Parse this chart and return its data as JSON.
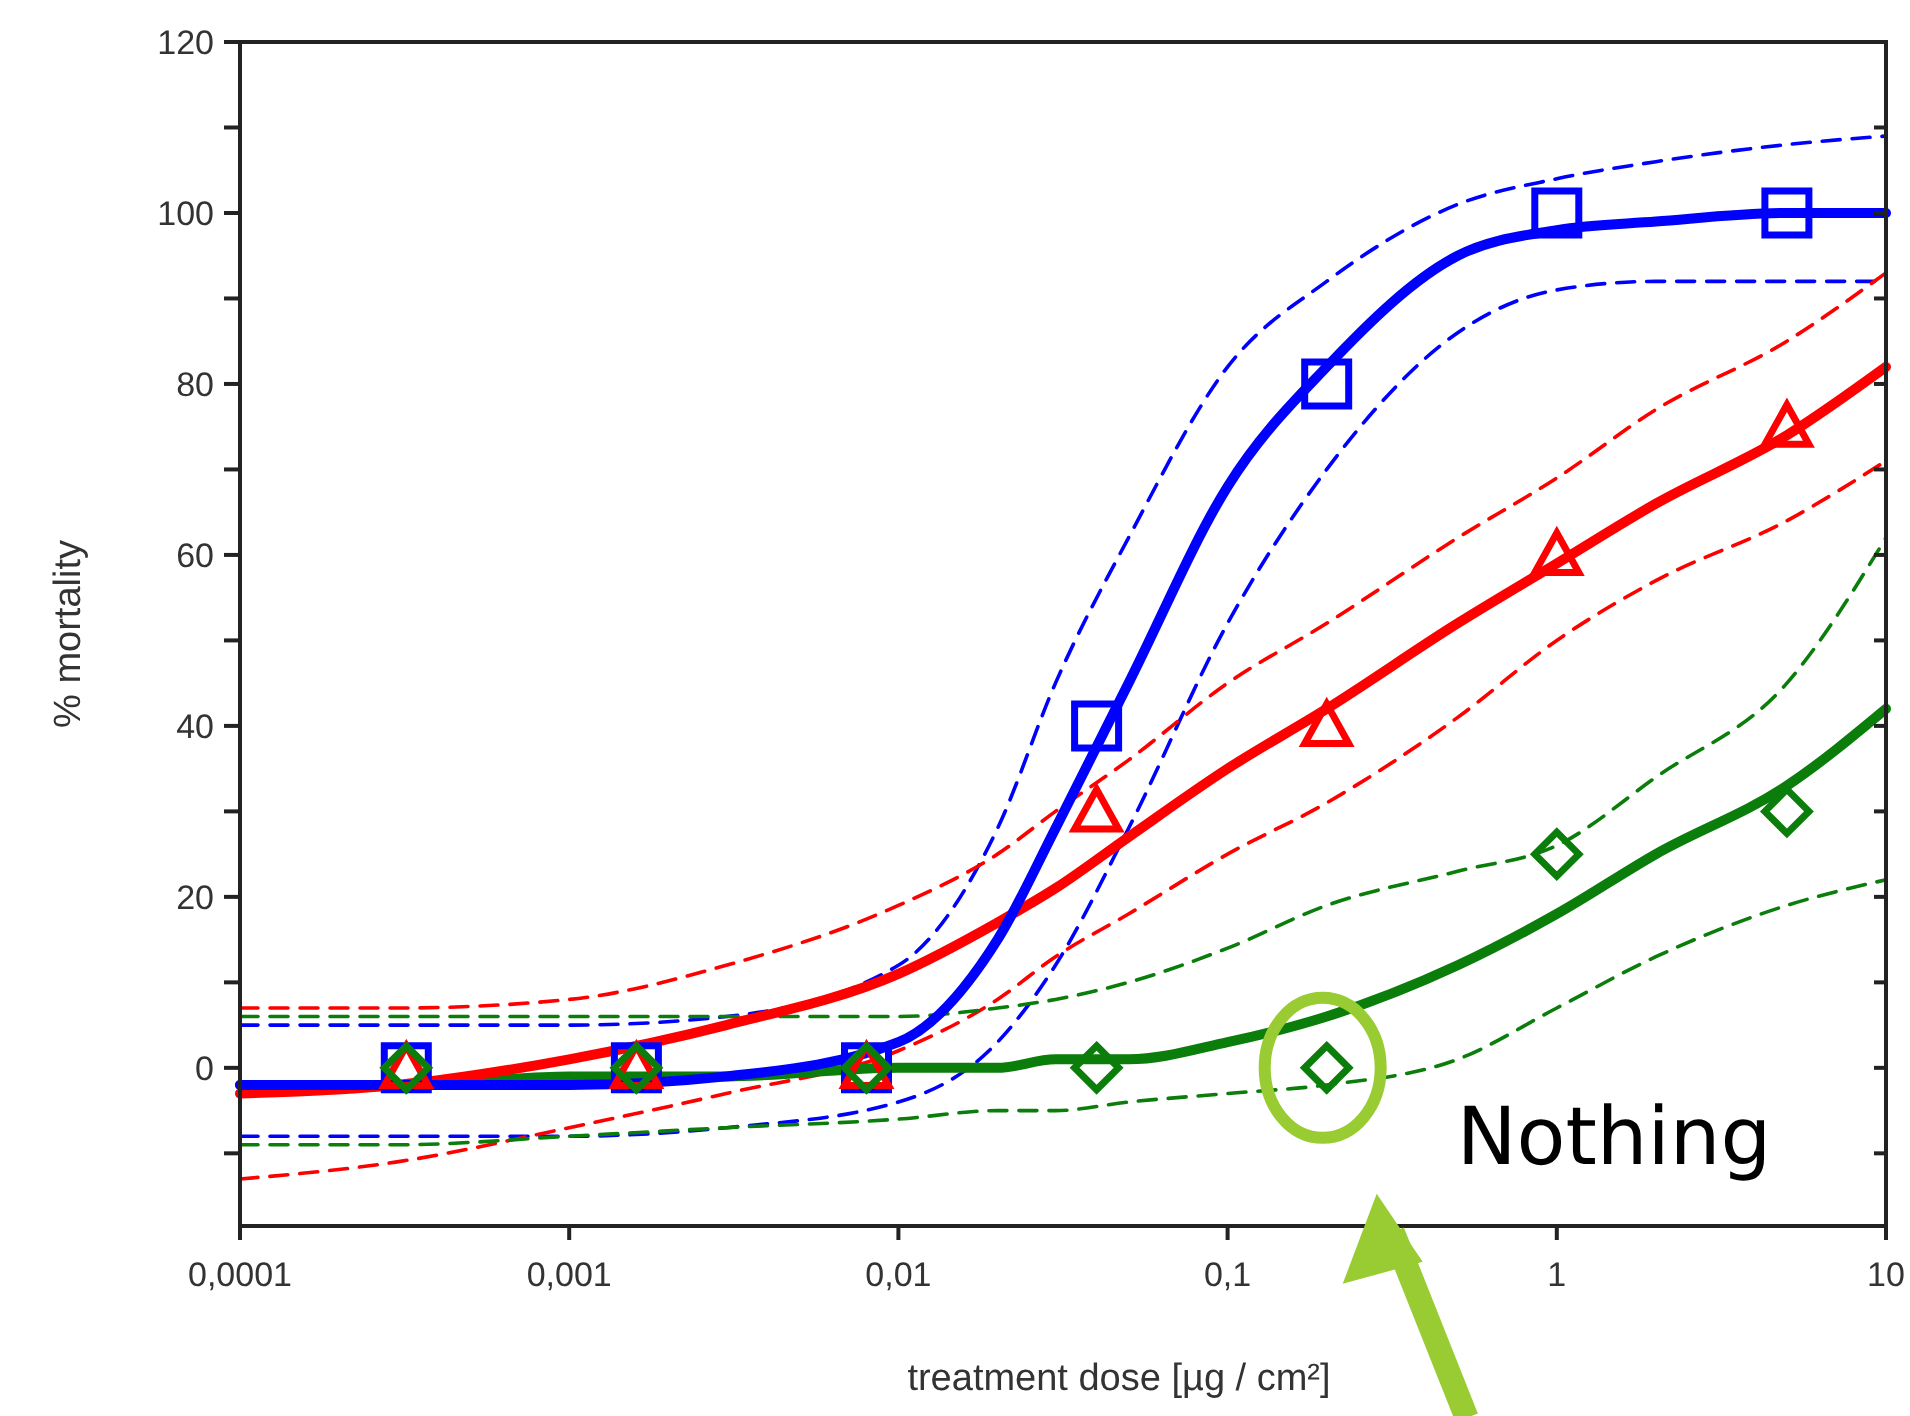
{
  "chart_data": {
    "type": "scatter",
    "xlabel": "treatment dose [µg / cm²]",
    "ylabel": "% mortality",
    "log": "x",
    "grid": false,
    "xlim": [
      0.0001,
      10
    ],
    "xticks": [
      {
        "value": 0.0001,
        "label": "0,0001"
      },
      {
        "value": 0.001,
        "label": "0,001"
      },
      {
        "value": 0.01,
        "label": "0,01"
      },
      {
        "value": 0.1,
        "label": "0,1"
      },
      {
        "value": 1,
        "label": "1"
      },
      10
    ],
    "ylim": [
      -18.5,
      120
    ],
    "yticks": [
      {
        "value": -10,
        "label": null
      },
      0,
      {
        "value": 10,
        "label": null
      },
      20,
      {
        "value": 30,
        "label": null
      },
      40,
      {
        "value": 50,
        "label": null
      },
      60,
      {
        "value": 70,
        "label": null
      },
      80,
      {
        "value": 90,
        "label": null
      },
      100,
      {
        "value": 110,
        "label": null
      },
      120
    ],
    "x": [
      0.00032,
      0.0016,
      0.008,
      0.04,
      0.2,
      1,
      5
    ],
    "series": [
      {
        "type": "line",
        "color": "#0000ff",
        "line_style": "dashed",
        "x": [
          0.0001,
          0.0003,
          0.001,
          0.003,
          0.01,
          0.02,
          0.03,
          0.05,
          0.1,
          0.2,
          0.5,
          1,
          2,
          5,
          10
        ],
        "values": [
          5,
          5,
          5,
          6,
          12,
          28,
          45,
          62,
          82,
          92,
          101,
          104,
          106,
          108,
          109
        ]
      },
      {
        "type": "line",
        "color": "#0000ff",
        "line_style": "dashed",
        "x": [
          0.0001,
          0.0003,
          0.001,
          0.003,
          0.01,
          0.02,
          0.03,
          0.05,
          0.1,
          0.2,
          0.5,
          1,
          2,
          5,
          10
        ],
        "values": [
          -8,
          -8,
          -8,
          -7,
          -4,
          3,
          12,
          28,
          52,
          70,
          86,
          91,
          92,
          92,
          92
        ]
      },
      {
        "type": "line",
        "color": "#ff0000",
        "line_style": "dashed",
        "x": [
          0.0001,
          0.0003,
          0.001,
          0.003,
          0.01,
          0.02,
          0.03,
          0.05,
          0.1,
          0.2,
          0.5,
          1,
          2,
          5,
          10
        ],
        "values": [
          7,
          7,
          8,
          12,
          19,
          25,
          30,
          36,
          45,
          52,
          62,
          69,
          77,
          85,
          93
        ]
      },
      {
        "type": "line",
        "color": "#ff0000",
        "line_style": "dashed",
        "x": [
          0.0001,
          0.0003,
          0.001,
          0.003,
          0.01,
          0.02,
          0.03,
          0.05,
          0.1,
          0.2,
          0.5,
          1,
          2,
          5,
          10
        ],
        "values": [
          -13,
          -11,
          -7,
          -3,
          2,
          8,
          13,
          18,
          25,
          31,
          41,
          50,
          57,
          64,
          71
        ]
      },
      {
        "type": "line",
        "color": "#0a7d0a",
        "line_style": "dashed",
        "x": [
          0.0001,
          0.0003,
          0.001,
          0.003,
          0.01,
          0.02,
          0.03,
          0.05,
          0.1,
          0.2,
          0.5,
          1,
          2,
          5,
          10
        ],
        "values": [
          6,
          6,
          6,
          6,
          6,
          7,
          8,
          10,
          14,
          19,
          23,
          26,
          34,
          45,
          62
        ]
      },
      {
        "type": "line",
        "color": "#0a7d0a",
        "line_style": "dashed",
        "x": [
          0.0001,
          0.0003,
          0.001,
          0.003,
          0.01,
          0.02,
          0.03,
          0.05,
          0.1,
          0.2,
          0.5,
          1,
          2,
          5,
          10
        ],
        "values": [
          -9,
          -9,
          -8,
          -7,
          -6,
          -5,
          -5,
          -4,
          -3,
          -2,
          1,
          7,
          13,
          19,
          22
        ]
      },
      {
        "type": "line",
        "color": "#0a7d0a",
        "line_style": "solid",
        "x": [
          0.0001,
          0.0003,
          0.001,
          0.003,
          0.01,
          0.02,
          0.03,
          0.05,
          0.1,
          0.2,
          0.5,
          1,
          2,
          5,
          10
        ],
        "values": [
          -2,
          -2,
          -1,
          -1,
          0,
          0,
          1,
          1,
          3,
          6,
          12,
          18,
          25,
          33,
          42
        ]
      },
      {
        "type": "line",
        "color": "#ff0000",
        "line_style": "solid",
        "x": [
          0.0001,
          0.0003,
          0.001,
          0.003,
          0.01,
          0.02,
          0.03,
          0.05,
          0.1,
          0.2,
          0.5,
          1,
          2,
          5,
          10
        ],
        "values": [
          -3,
          -2,
          1,
          5,
          11,
          17,
          21,
          27,
          35,
          42,
          52,
          59,
          66,
          74,
          82
        ]
      },
      {
        "type": "line",
        "color": "#0000ff",
        "line_style": "solid",
        "x": [
          0.0001,
          0.0003,
          0.001,
          0.003,
          0.01,
          0.02,
          0.03,
          0.05,
          0.1,
          0.2,
          0.5,
          1,
          2,
          5,
          10
        ],
        "values": [
          -2,
          -2,
          -2,
          -1,
          3,
          15,
          28,
          45,
          68,
          82,
          95,
          98,
          99,
          100,
          100
        ]
      },
      {
        "color": "#0000ff",
        "marker": "square",
        "values": [
          0,
          0,
          0,
          40,
          80,
          100,
          100
        ]
      },
      {
        "color": "#ff0000",
        "marker": "triangle",
        "values": [
          0,
          0,
          0,
          30,
          40,
          60,
          75
        ]
      },
      {
        "color": "#0a7d0a",
        "marker": "diamond",
        "values": [
          0,
          0,
          0,
          0,
          0,
          25,
          30
        ]
      }
    ],
    "annotations": [
      {
        "text": "Nothing",
        "x": 0.2,
        "y": 0
      }
    ]
  }
}
